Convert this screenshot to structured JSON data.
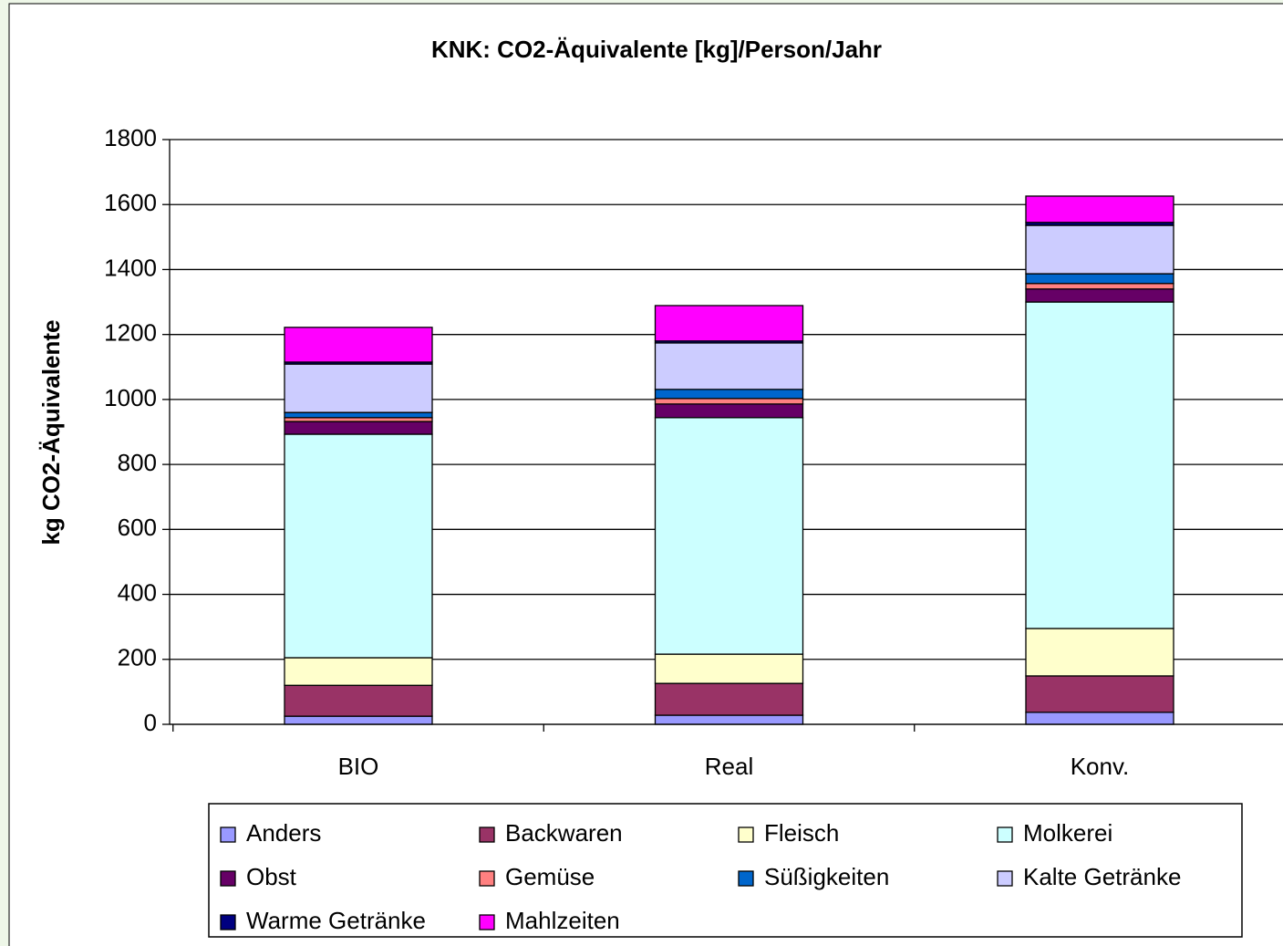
{
  "chart_data": {
    "type": "stacked_bar",
    "title": "KNK: CO2-Äquivalente [kg]/Person/Jahr",
    "y_label": "kg CO2-Äquivalente",
    "categories": [
      "BIO",
      "Real",
      "Konv."
    ],
    "series": [
      {
        "name": "Anders",
        "color": "#9999ff",
        "values": [
          25,
          28,
          37
        ]
      },
      {
        "name": "Backwaren",
        "color": "#993366",
        "values": [
          95,
          98,
          112
        ]
      },
      {
        "name": "Fleisch",
        "color": "#ffffcc",
        "values": [
          85,
          90,
          146
        ]
      },
      {
        "name": "Molkerei",
        "color": "#ccffff",
        "values": [
          688,
          728,
          1005
        ]
      },
      {
        "name": "Obst",
        "color": "#660066",
        "values": [
          39,
          42,
          40
        ]
      },
      {
        "name": "Gemüse",
        "color": "#ff8080",
        "values": [
          12,
          17,
          17
        ]
      },
      {
        "name": "Süßigkeiten",
        "color": "#0066cc",
        "values": [
          16,
          28,
          30
        ]
      },
      {
        "name": "Kalte Getränke",
        "color": "#ccccff",
        "values": [
          149,
          143,
          149
        ]
      },
      {
        "name": "Warme Getränke",
        "color": "#000080",
        "values": [
          6,
          6,
          9
        ]
      },
      {
        "name": "Mahlzeiten",
        "color": "#ff00ff",
        "values": [
          107,
          109,
          81
        ]
      }
    ],
    "ylim": [
      0,
      1800
    ],
    "yticks": [
      0,
      200,
      400,
      600,
      800,
      1000,
      1200,
      1400,
      1600,
      1800
    ],
    "grid": true
  }
}
